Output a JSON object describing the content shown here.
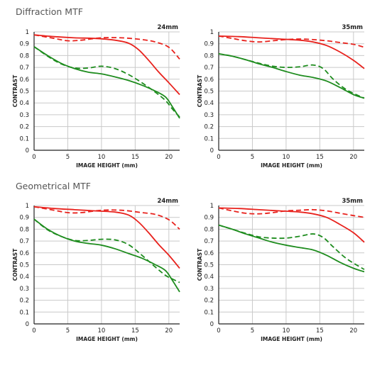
{
  "sections": [
    {
      "title": "Diffraction MTF"
    },
    {
      "title": "Geometrical MTF"
    }
  ],
  "colors": {
    "sagittal_sharp": "#e8221d",
    "meridional_sharp": "#1e8c1e",
    "grid": "#c9c9c9",
    "axis": "#222222"
  },
  "chart_data": [
    {
      "type": "line",
      "section": "Diffraction MTF",
      "title": "24mm",
      "xlabel": "IMAGE HEIGHT (mm)",
      "ylabel": "CONTRAST",
      "xlim": [
        0,
        21.6
      ],
      "ylim": [
        0,
        1
      ],
      "xticks": [
        0,
        5,
        10,
        15,
        20
      ],
      "yticks": [
        0,
        0.1,
        0.2,
        0.3,
        0.4,
        0.5,
        0.6,
        0.7,
        0.8,
        0.9,
        1
      ],
      "grid": true,
      "series": [
        {
          "color": "#e8221d",
          "dash": false,
          "x": [
            0,
            3,
            6,
            9,
            12,
            14,
            15.5,
            17,
            18.5,
            20,
            21.6
          ],
          "y": [
            0.975,
            0.96,
            0.95,
            0.945,
            0.93,
            0.905,
            0.85,
            0.76,
            0.66,
            0.57,
            0.47
          ]
        },
        {
          "color": "#e8221d",
          "dash": true,
          "x": [
            0,
            3,
            5,
            7,
            10,
            13,
            16,
            18,
            20,
            21.6
          ],
          "y": [
            0.975,
            0.945,
            0.925,
            0.93,
            0.95,
            0.95,
            0.935,
            0.915,
            0.87,
            0.77
          ]
        },
        {
          "color": "#1e8c1e",
          "dash": false,
          "x": [
            0,
            2,
            4,
            6,
            8,
            10,
            12,
            14,
            16,
            18,
            19.5,
            20.5,
            21.6
          ],
          "y": [
            0.875,
            0.8,
            0.735,
            0.69,
            0.66,
            0.645,
            0.62,
            0.59,
            0.55,
            0.5,
            0.45,
            0.37,
            0.27
          ]
        },
        {
          "color": "#1e8c1e",
          "dash": true,
          "x": [
            0,
            2,
            4,
            6,
            8,
            10,
            12,
            14,
            16,
            18,
            19.5,
            20.5,
            21.6
          ],
          "y": [
            0.875,
            0.795,
            0.73,
            0.695,
            0.695,
            0.71,
            0.69,
            0.64,
            0.57,
            0.49,
            0.42,
            0.35,
            0.28
          ]
        }
      ]
    },
    {
      "type": "line",
      "section": "Diffraction MTF",
      "title": "35mm",
      "xlabel": "IMAGE HEIGHT (mm)",
      "ylabel": "CONTRAST",
      "xlim": [
        0,
        21.6
      ],
      "ylim": [
        0,
        1
      ],
      "xticks": [
        0,
        5,
        10,
        15,
        20
      ],
      "yticks": [
        0,
        0.1,
        0.2,
        0.3,
        0.4,
        0.5,
        0.6,
        0.7,
        0.8,
        0.9,
        1
      ],
      "grid": true,
      "series": [
        {
          "color": "#e8221d",
          "dash": false,
          "x": [
            0,
            3,
            6,
            9,
            12,
            14,
            16,
            18,
            20,
            21.6
          ],
          "y": [
            0.965,
            0.96,
            0.95,
            0.94,
            0.93,
            0.915,
            0.885,
            0.83,
            0.76,
            0.69
          ]
        },
        {
          "color": "#e8221d",
          "dash": true,
          "x": [
            0,
            2,
            4,
            6,
            8,
            10,
            12,
            14,
            16,
            18,
            20,
            21.6
          ],
          "y": [
            0.965,
            0.945,
            0.925,
            0.915,
            0.925,
            0.935,
            0.94,
            0.935,
            0.925,
            0.91,
            0.895,
            0.87
          ]
        },
        {
          "color": "#1e8c1e",
          "dash": false,
          "x": [
            0,
            2,
            4,
            6,
            8,
            10,
            12,
            14,
            16,
            18,
            20,
            21.6
          ],
          "y": [
            0.815,
            0.795,
            0.765,
            0.73,
            0.7,
            0.665,
            0.635,
            0.615,
            0.585,
            0.53,
            0.47,
            0.44
          ]
        },
        {
          "color": "#1e8c1e",
          "dash": true,
          "x": [
            0,
            2,
            4,
            6,
            8,
            10,
            12,
            14,
            15.5,
            17,
            19,
            21.6
          ],
          "y": [
            0.815,
            0.795,
            0.765,
            0.735,
            0.71,
            0.7,
            0.705,
            0.72,
            0.69,
            0.6,
            0.51,
            0.44
          ]
        }
      ]
    },
    {
      "type": "line",
      "section": "Geometrical MTF",
      "title": "24mm",
      "xlabel": "IMAGE HEIGHT (mm)",
      "ylabel": "CONTRAST",
      "xlim": [
        0,
        21.6
      ],
      "ylim": [
        0,
        1
      ],
      "xticks": [
        0,
        5,
        10,
        15,
        20
      ],
      "yticks": [
        0,
        0.1,
        0.2,
        0.3,
        0.4,
        0.5,
        0.6,
        0.7,
        0.8,
        0.9,
        1
      ],
      "grid": true,
      "series": [
        {
          "color": "#e8221d",
          "dash": false,
          "x": [
            0,
            3,
            6,
            9,
            12,
            14,
            15.5,
            17,
            18.5,
            20,
            21.6
          ],
          "y": [
            0.99,
            0.975,
            0.965,
            0.955,
            0.945,
            0.92,
            0.86,
            0.77,
            0.67,
            0.58,
            0.47
          ]
        },
        {
          "color": "#e8221d",
          "dash": true,
          "x": [
            0,
            3,
            5,
            7,
            10,
            13,
            16,
            18,
            20,
            21.6
          ],
          "y": [
            0.99,
            0.96,
            0.94,
            0.94,
            0.96,
            0.96,
            0.94,
            0.925,
            0.88,
            0.8
          ]
        },
        {
          "color": "#1e8c1e",
          "dash": false,
          "x": [
            0,
            2,
            4,
            6,
            8,
            10,
            12,
            14,
            16,
            18,
            19.5,
            20.5,
            21.6
          ],
          "y": [
            0.885,
            0.8,
            0.74,
            0.7,
            0.68,
            0.665,
            0.635,
            0.595,
            0.555,
            0.5,
            0.45,
            0.37,
            0.27
          ]
        },
        {
          "color": "#1e8c1e",
          "dash": true,
          "x": [
            0,
            2,
            4,
            6,
            8,
            10,
            12,
            14,
            16,
            18,
            19.5,
            20.5,
            21.6
          ],
          "y": [
            0.885,
            0.795,
            0.74,
            0.705,
            0.705,
            0.715,
            0.71,
            0.67,
            0.58,
            0.48,
            0.41,
            0.38,
            0.35
          ]
        }
      ]
    },
    {
      "type": "line",
      "section": "Geometrical MTF",
      "title": "35mm",
      "xlabel": "IMAGE HEIGHT (mm)",
      "ylabel": "CONTRAST",
      "xlim": [
        0,
        21.6
      ],
      "ylim": [
        0,
        1
      ],
      "xticks": [
        0,
        5,
        10,
        15,
        20
      ],
      "yticks": [
        0,
        0.1,
        0.2,
        0.3,
        0.4,
        0.5,
        0.6,
        0.7,
        0.8,
        0.9,
        1
      ],
      "grid": true,
      "series": [
        {
          "color": "#e8221d",
          "dash": false,
          "x": [
            0,
            3,
            6,
            9,
            12,
            14,
            16,
            18,
            20,
            21.6
          ],
          "y": [
            0.98,
            0.975,
            0.965,
            0.955,
            0.945,
            0.93,
            0.9,
            0.84,
            0.77,
            0.69
          ]
        },
        {
          "color": "#e8221d",
          "dash": true,
          "x": [
            0,
            2,
            4,
            6,
            8,
            10,
            12,
            14,
            16,
            18,
            20,
            21.6
          ],
          "y": [
            0.98,
            0.955,
            0.935,
            0.93,
            0.94,
            0.955,
            0.96,
            0.965,
            0.955,
            0.935,
            0.915,
            0.9
          ]
        },
        {
          "color": "#1e8c1e",
          "dash": false,
          "x": [
            0,
            2,
            4,
            6,
            8,
            10,
            12,
            14,
            16,
            18,
            20,
            21.6
          ],
          "y": [
            0.835,
            0.8,
            0.76,
            0.725,
            0.69,
            0.665,
            0.645,
            0.625,
            0.58,
            0.52,
            0.47,
            0.44
          ]
        },
        {
          "color": "#1e8c1e",
          "dash": true,
          "x": [
            0,
            2,
            4,
            6,
            8,
            10,
            12,
            14,
            15.5,
            17,
            19,
            21.6
          ],
          "y": [
            0.835,
            0.8,
            0.765,
            0.735,
            0.725,
            0.725,
            0.74,
            0.76,
            0.73,
            0.65,
            0.55,
            0.46
          ]
        }
      ]
    }
  ]
}
